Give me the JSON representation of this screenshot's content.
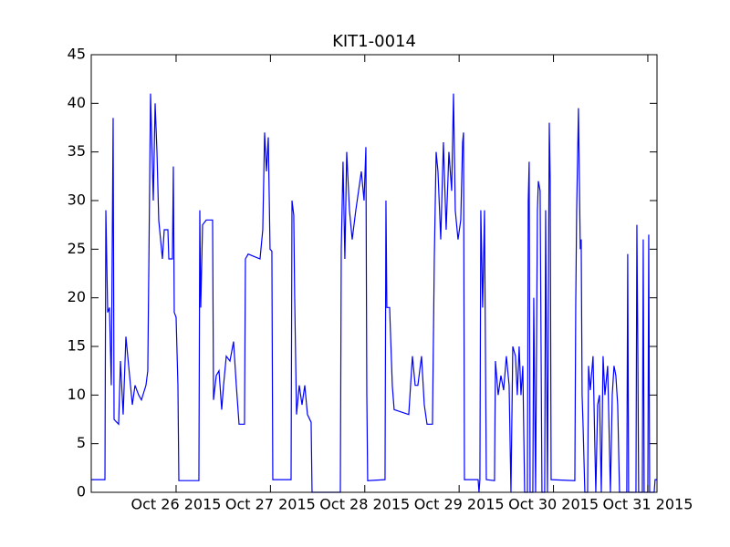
{
  "chart_data": {
    "type": "line",
    "title": "KIT1-0014",
    "color": "#0000ff",
    "x": [
      "2015-10-25T02:25",
      "2015-10-25T05:54",
      "2015-10-25T06:08",
      "2015-10-25T06:36",
      "2015-10-25T07:03",
      "2015-10-25T07:31",
      "2015-10-25T07:59",
      "2015-10-25T08:13",
      "2015-10-25T09:23",
      "2015-10-25T09:51",
      "2015-10-25T10:32",
      "2015-10-25T11:14",
      "2015-10-25T12:10",
      "2015-10-25T12:52",
      "2015-10-25T13:33",
      "2015-10-25T14:29",
      "2015-10-25T15:11",
      "2015-10-25T16:20",
      "2015-10-25T16:48",
      "2015-10-25T17:30",
      "2015-10-25T18:12",
      "2015-10-25T18:40",
      "2015-10-25T19:08",
      "2015-10-25T19:35",
      "2015-10-25T20:03",
      "2015-10-25T20:31",
      "2015-10-25T20:59",
      "2015-10-25T21:55",
      "2015-10-25T22:09",
      "2015-10-25T23:04",
      "2015-10-25T23:18",
      "2015-10-25T23:32",
      "2015-10-26T00:00",
      "2015-10-26T00:28",
      "2015-10-26T00:42",
      "2015-10-26T05:48",
      "2015-10-26T06:02",
      "2015-10-26T06:16",
      "2015-10-26T06:44",
      "2015-10-26T07:40",
      "2015-10-26T09:17",
      "2015-10-26T09:31",
      "2015-10-26T10:13",
      "2015-10-26T10:55",
      "2015-10-26T11:36",
      "2015-10-26T12:04",
      "2015-10-26T12:46",
      "2015-10-26T13:42",
      "2015-10-26T14:37",
      "2015-10-26T15:19",
      "2015-10-26T16:01",
      "2015-10-26T17:24",
      "2015-10-26T17:38",
      "2015-10-26T18:20",
      "2015-10-26T21:21",
      "2015-10-26T22:03",
      "2015-10-26T22:31",
      "2015-10-26T22:59",
      "2015-10-26T23:27",
      "2015-10-26T23:54",
      "2015-10-27T00:22",
      "2015-10-27T00:36",
      "2015-10-27T05:15",
      "2015-10-27T05:29",
      "2015-10-27T05:56",
      "2015-10-27T06:10",
      "2015-10-27T06:38",
      "2015-10-27T07:20",
      "2015-10-27T08:02",
      "2015-10-27T08:44",
      "2015-10-27T09:25",
      "2015-10-27T10:21",
      "2015-10-27T10:35",
      "2015-10-27T17:47",
      "2015-10-27T18:01",
      "2015-10-27T18:28",
      "2015-10-27T18:56",
      "2015-10-27T19:24",
      "2015-10-27T20:06",
      "2015-10-27T20:48",
      "2015-10-27T21:43",
      "2015-10-27T22:25",
      "2015-10-27T23:07",
      "2015-10-27T23:49",
      "2015-10-28T00:17",
      "2015-10-28T00:31",
      "2015-10-28T00:44",
      "2015-10-28T05:09",
      "2015-10-28T05:23",
      "2015-10-28T05:37",
      "2015-10-28T06:19",
      "2015-10-28T07:00",
      "2015-10-28T07:28",
      "2015-10-28T11:11",
      "2015-10-28T12:07",
      "2015-10-28T12:49",
      "2015-10-28T13:30",
      "2015-10-28T14:26",
      "2015-10-28T15:08",
      "2015-10-28T15:50",
      "2015-10-28T17:13",
      "2015-10-28T17:41",
      "2015-10-28T18:09",
      "2015-10-28T18:37",
      "2015-10-28T19:19",
      "2015-10-28T20:00",
      "2015-10-28T20:42",
      "2015-10-28T21:24",
      "2015-10-28T22:06",
      "2015-10-28T22:34",
      "2015-10-28T23:01",
      "2015-10-28T23:43",
      "2015-10-29T00:25",
      "2015-10-29T00:53",
      "2015-10-29T01:07",
      "2015-10-29T01:21",
      "2015-10-29T04:50",
      "2015-10-29T05:03",
      "2015-10-29T05:17",
      "2015-10-29T05:31",
      "2015-10-29T05:59",
      "2015-10-29T06:27",
      "2015-10-29T06:55",
      "2015-10-29T09:00",
      "2015-10-29T09:14",
      "2015-10-29T09:56",
      "2015-10-29T10:38",
      "2015-10-29T11:19",
      "2015-10-29T12:01",
      "2015-10-29T12:43",
      "2015-10-29T13:11",
      "2015-10-29T13:39",
      "2015-10-29T14:20",
      "2015-10-29T14:48",
      "2015-10-29T15:16",
      "2015-10-29T15:44",
      "2015-10-29T16:12",
      "2015-10-29T16:40",
      "2015-10-29T17:22",
      "2015-10-29T17:35",
      "2015-10-29T17:49",
      "2015-10-29T18:03",
      "2015-10-29T18:45",
      "2015-10-29T18:59",
      "2015-10-29T19:27",
      "2015-10-29T19:55",
      "2015-10-29T20:09",
      "2015-10-29T20:36",
      "2015-10-29T21:04",
      "2015-10-29T21:46",
      "2015-10-29T22:00",
      "2015-10-29T22:28",
      "2015-10-29T22:56",
      "2015-10-29T23:10",
      "2015-10-29T23:24",
      "2015-10-30T05:26",
      "2015-10-30T05:40",
      "2015-10-30T05:54",
      "2015-10-30T06:21",
      "2015-10-30T06:49",
      "2015-10-30T07:03",
      "2015-10-30T07:17",
      "2015-10-30T07:31",
      "2015-10-30T07:59",
      "2015-10-30T08:41",
      "2015-10-30T08:55",
      "2015-10-30T09:22",
      "2015-10-30T10:04",
      "2015-10-30T10:46",
      "2015-10-30T11:14",
      "2015-10-30T11:42",
      "2015-10-30T12:10",
      "2015-10-30T12:37",
      "2015-10-30T13:05",
      "2015-10-30T13:47",
      "2015-10-30T14:29",
      "2015-10-30T14:57",
      "2015-10-30T15:24",
      "2015-10-30T15:52",
      "2015-10-30T16:20",
      "2015-10-30T16:48",
      "2015-10-30T18:39",
      "2015-10-30T18:53",
      "2015-10-30T19:07",
      "2015-10-30T20:59",
      "2015-10-30T21:13",
      "2015-10-30T21:27",
      "2015-10-30T21:40",
      "2015-10-30T22:36",
      "2015-10-30T22:50",
      "2015-10-30T23:04",
      "2015-10-31T00:00",
      "2015-10-31T00:14",
      "2015-10-31T00:28",
      "2015-10-31T01:37",
      "2015-10-31T01:51",
      "2015-10-31T02:19"
    ],
    "values": [
      1.3,
      1.3,
      29,
      18.5,
      19,
      11,
      38.5,
      7.5,
      7,
      13.5,
      8,
      16,
      12,
      9,
      11,
      10,
      9.5,
      11,
      12.5,
      41,
      30,
      40,
      35,
      28,
      26,
      24,
      27,
      27,
      24,
      24,
      33.5,
      18.5,
      18,
      11,
      1.2,
      1.2,
      29,
      19,
      27.5,
      28,
      28,
      9.5,
      12,
      12.5,
      8.5,
      11,
      14,
      13.5,
      15.5,
      11,
      7,
      7,
      24,
      24.5,
      24,
      27,
      37,
      33,
      36.5,
      25,
      24.8,
      1.3,
      1.3,
      30,
      28.5,
      20,
      8,
      11,
      9,
      11,
      8,
      7.2,
      0,
      0,
      25,
      34,
      24,
      35,
      29,
      26,
      29,
      31,
      33,
      30,
      35.5,
      10,
      1.2,
      1.3,
      30,
      19,
      19,
      11,
      8.5,
      8,
      14,
      11,
      11,
      14,
      9,
      7,
      7,
      24,
      35,
      33,
      26,
      36,
      27,
      35,
      31,
      41,
      29,
      26,
      28,
      36,
      37,
      1.3,
      1.3,
      0,
      1.3,
      29,
      19,
      29,
      1.3,
      1.2,
      13.5,
      10,
      12,
      10.5,
      14,
      11,
      0,
      15,
      14,
      10,
      15,
      10,
      13,
      0,
      0,
      30,
      34,
      0,
      0,
      20,
      0,
      29,
      32,
      31,
      0,
      0,
      29,
      0,
      38,
      32,
      1.3,
      1.2,
      19.5,
      29,
      39.5,
      25,
      26,
      10,
      7,
      0,
      0,
      13,
      10.5,
      14,
      0,
      9,
      10,
      0,
      14,
      10,
      13,
      0,
      10,
      13,
      12,
      9,
      0,
      0,
      24.5,
      0,
      0,
      27.5,
      15,
      0,
      0,
      26,
      0,
      0,
      26.5,
      0,
      0,
      1.3,
      1.3
    ],
    "xlim": [
      "2015-10-25T02:25",
      "2015-10-31T02:20"
    ],
    "xticks": [
      {
        "value": "2015-10-26T00:00",
        "label": "Oct 26 2015"
      },
      {
        "value": "2015-10-27T00:00",
        "label": "Oct 27 2015"
      },
      {
        "value": "2015-10-28T00:00",
        "label": "Oct 28 2015"
      },
      {
        "value": "2015-10-29T00:00",
        "label": "Oct 29 2015"
      },
      {
        "value": "2015-10-30T00:00",
        "label": "Oct 30 2015"
      },
      {
        "value": "2015-10-31T00:00",
        "label": "Oct 31 2015"
      }
    ],
    "ylim": [
      0,
      45
    ],
    "yticks": [
      0,
      5,
      10,
      15,
      20,
      25,
      30,
      35,
      40,
      45
    ],
    "grid": false
  }
}
